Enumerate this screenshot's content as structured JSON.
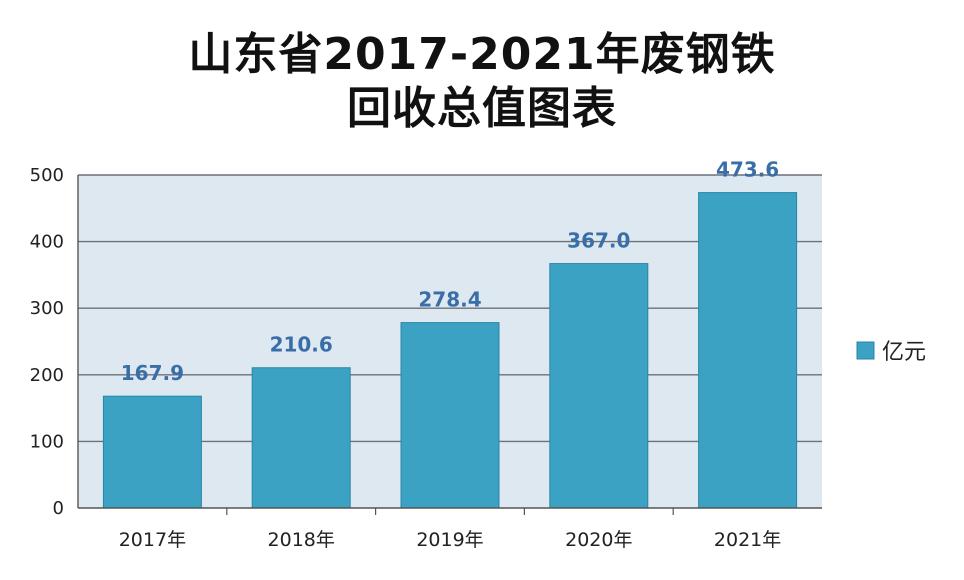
{
  "chart_data": {
    "type": "bar",
    "title": "山东省2017-2021年废钢铁",
    "subtitle": "回收总值图表",
    "categories": [
      "2017年",
      "2018年",
      "2019年",
      "2020年",
      "2021年"
    ],
    "series": [
      {
        "name": "亿元",
        "values": [
          167.9,
          210.6,
          278.4,
          367.0,
          473.6
        ]
      }
    ],
    "data_labels": [
      "167.9",
      "210.6",
      "278.4",
      "367.0",
      "473.6"
    ],
    "y_ticks": [
      "0",
      "100",
      "200",
      "300",
      "400",
      "500"
    ],
    "ylim": [
      0,
      500
    ],
    "grid": true,
    "legend_position": "right",
    "colors": {
      "bar": "#3ba2c4",
      "bar_edge": "#2a86a6",
      "plot_bg": "#dde8f1",
      "grid": "#6d7178",
      "label": "#3a6ea8"
    }
  }
}
